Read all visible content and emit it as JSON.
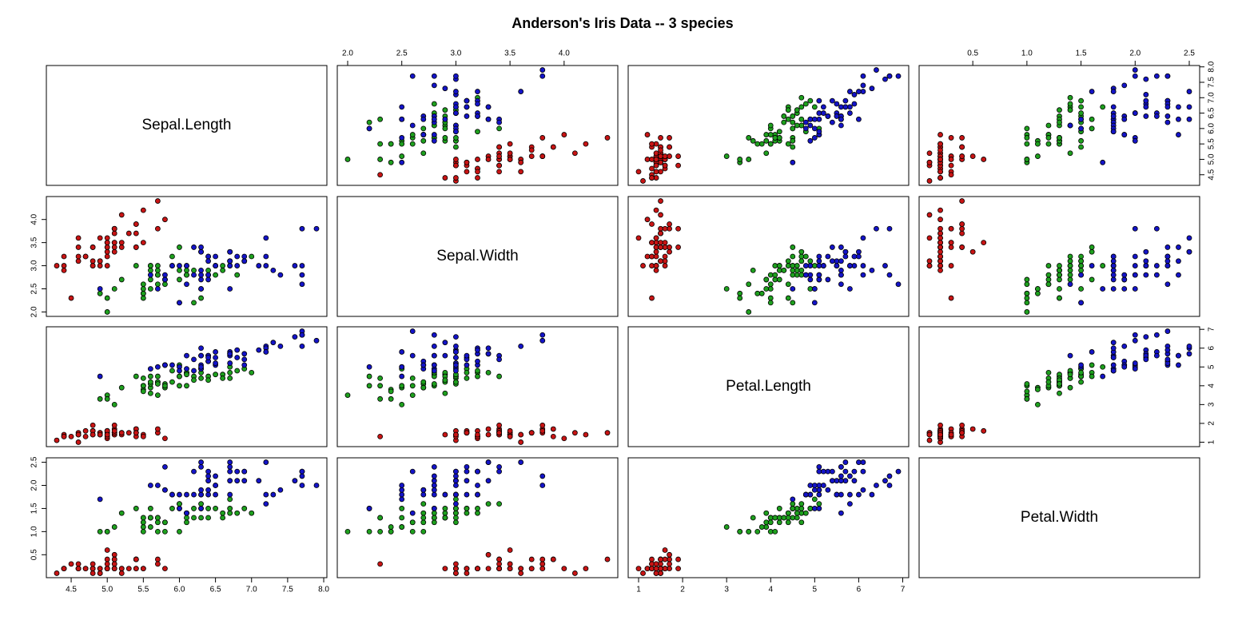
{
  "chart_data": {
    "type": "scatter_matrix",
    "title": "Anderson's Iris Data -- 3 species",
    "variables": [
      {
        "label": "Sepal.Length",
        "lim": [
          4.156,
          8.044
        ],
        "ticks": [
          4.5,
          {
            "value": 5,
            "label": "5.0"
          },
          5.5,
          {
            "value": 6,
            "label": "6.0"
          },
          6.5,
          {
            "value": 7,
            "label": "7.0"
          },
          7.5,
          {
            "value": 8,
            "label": "8.0"
          }
        ]
      },
      {
        "label": "Sepal.Width",
        "lim": [
          1.904,
          4.496
        ],
        "ticks": [
          {
            "value": 2,
            "label": "2.0"
          },
          2.5,
          {
            "value": 3,
            "label": "3.0"
          },
          3.5,
          {
            "value": 4,
            "label": "4.0"
          }
        ]
      },
      {
        "label": "Petal.Length",
        "lim": [
          0.764,
          7.136
        ],
        "ticks": [
          1,
          2,
          3,
          4,
          5,
          6,
          7
        ]
      },
      {
        "label": "Petal.Width",
        "lim": [
          0.004,
          2.596
        ],
        "ticks": [
          0.5,
          {
            "value": 1,
            "label": "1.0"
          },
          1.5,
          {
            "value": 2,
            "label": "2.0"
          },
          2.5
        ]
      }
    ],
    "series": [
      {
        "color": "#c81414",
        "values": [
          [
            5.1,
            4.9,
            4.7,
            4.6,
            5.0,
            5.4,
            4.6,
            5.0,
            4.4,
            4.9,
            5.4,
            4.8,
            4.8,
            4.3,
            5.8,
            5.7,
            5.4,
            5.1,
            5.7,
            5.1,
            5.4,
            5.1,
            4.6,
            5.1,
            4.8,
            5.0,
            5.0,
            5.2,
            5.2,
            4.7,
            4.8,
            5.4,
            5.2,
            5.5,
            4.9,
            5.0,
            5.5,
            4.9,
            4.4,
            5.1,
            5.0,
            4.5,
            4.4,
            5.0,
            5.1,
            4.8,
            5.1,
            4.6,
            5.3,
            5.0
          ],
          [
            3.5,
            3.0,
            3.2,
            3.1,
            3.6,
            3.9,
            3.4,
            3.4,
            2.9,
            3.1,
            3.7,
            3.4,
            3.0,
            3.0,
            4.0,
            4.4,
            3.9,
            3.5,
            3.8,
            3.8,
            3.4,
            3.7,
            3.6,
            3.3,
            3.4,
            3.0,
            3.4,
            3.5,
            3.4,
            3.2,
            3.1,
            3.4,
            4.1,
            4.2,
            3.1,
            3.2,
            3.5,
            3.6,
            3.0,
            3.4,
            3.5,
            2.3,
            3.2,
            3.5,
            3.8,
            3.0,
            3.8,
            3.2,
            3.7,
            3.3
          ],
          [
            1.4,
            1.4,
            1.3,
            1.5,
            1.4,
            1.7,
            1.4,
            1.5,
            1.4,
            1.5,
            1.5,
            1.6,
            1.4,
            1.1,
            1.2,
            1.5,
            1.3,
            1.4,
            1.7,
            1.5,
            1.7,
            1.5,
            1.0,
            1.7,
            1.9,
            1.6,
            1.6,
            1.5,
            1.4,
            1.6,
            1.6,
            1.5,
            1.5,
            1.4,
            1.5,
            1.2,
            1.3,
            1.4,
            1.3,
            1.5,
            1.3,
            1.3,
            1.3,
            1.6,
            1.9,
            1.4,
            1.6,
            1.4,
            1.5,
            1.4
          ],
          [
            0.2,
            0.2,
            0.2,
            0.2,
            0.2,
            0.4,
            0.3,
            0.2,
            0.2,
            0.1,
            0.2,
            0.2,
            0.1,
            0.1,
            0.2,
            0.4,
            0.4,
            0.3,
            0.3,
            0.3,
            0.2,
            0.4,
            0.2,
            0.5,
            0.2,
            0.2,
            0.4,
            0.2,
            0.2,
            0.2,
            0.2,
            0.4,
            0.1,
            0.2,
            0.2,
            0.2,
            0.2,
            0.1,
            0.2,
            0.2,
            0.3,
            0.3,
            0.2,
            0.6,
            0.4,
            0.3,
            0.2,
            0.2,
            0.2,
            0.2
          ]
        ]
      },
      {
        "color": "#1ea01e",
        "values": [
          [
            7.0,
            6.4,
            6.9,
            5.5,
            6.5,
            5.7,
            6.3,
            4.9,
            6.6,
            5.2,
            5.0,
            5.9,
            6.0,
            6.1,
            5.6,
            6.7,
            5.6,
            5.8,
            6.2,
            5.6,
            5.9,
            6.1,
            6.3,
            6.1,
            6.4,
            6.6,
            6.8,
            6.7,
            6.0,
            5.7,
            5.5,
            5.5,
            5.8,
            6.0,
            5.4,
            6.0,
            6.7,
            6.3,
            5.6,
            5.5,
            5.5,
            6.1,
            5.8,
            5.0,
            5.6,
            5.7,
            5.7,
            6.2,
            5.1,
            5.7
          ],
          [
            3.2,
            3.2,
            3.1,
            2.3,
            2.8,
            2.8,
            3.3,
            2.4,
            2.9,
            2.7,
            2.0,
            3.0,
            2.2,
            2.9,
            2.9,
            3.1,
            3.0,
            2.7,
            2.2,
            2.5,
            3.2,
            2.8,
            2.5,
            2.8,
            2.9,
            3.0,
            2.8,
            3.0,
            2.9,
            2.6,
            2.4,
            2.4,
            2.7,
            2.7,
            3.0,
            3.4,
            3.1,
            2.3,
            3.0,
            2.5,
            2.6,
            3.0,
            2.6,
            2.3,
            2.7,
            3.0,
            2.9,
            2.9,
            2.5,
            2.8
          ],
          [
            4.7,
            4.5,
            4.9,
            4.0,
            4.6,
            4.5,
            4.7,
            3.3,
            4.6,
            3.9,
            3.5,
            4.2,
            4.0,
            4.7,
            3.6,
            4.4,
            4.5,
            4.1,
            4.5,
            3.9,
            4.8,
            4.0,
            4.9,
            4.7,
            4.3,
            4.4,
            4.8,
            5.0,
            4.5,
            3.5,
            3.8,
            3.7,
            3.9,
            5.1,
            4.5,
            4.5,
            4.7,
            4.4,
            4.1,
            4.0,
            4.4,
            4.6,
            4.0,
            3.3,
            4.2,
            4.2,
            4.2,
            4.3,
            3.0,
            4.1
          ],
          [
            1.4,
            1.5,
            1.5,
            1.3,
            1.5,
            1.3,
            1.6,
            1.0,
            1.3,
            1.4,
            1.0,
            1.5,
            1.0,
            1.4,
            1.3,
            1.4,
            1.5,
            1.0,
            1.5,
            1.1,
            1.8,
            1.3,
            1.5,
            1.2,
            1.3,
            1.4,
            1.4,
            1.7,
            1.5,
            1.0,
            1.1,
            1.0,
            1.2,
            1.6,
            1.5,
            1.6,
            1.5,
            1.3,
            1.3,
            1.3,
            1.2,
            1.4,
            1.2,
            1.0,
            1.3,
            1.2,
            1.3,
            1.3,
            1.1,
            1.3
          ]
        ]
      },
      {
        "color": "#1414c8",
        "values": [
          [
            6.3,
            5.8,
            7.1,
            6.3,
            6.5,
            7.6,
            4.9,
            7.3,
            6.7,
            7.2,
            6.5,
            6.4,
            6.8,
            5.7,
            5.8,
            6.4,
            6.5,
            7.7,
            7.7,
            6.0,
            6.9,
            5.6,
            7.7,
            6.3,
            6.7,
            7.2,
            6.2,
            6.1,
            6.4,
            7.2,
            7.4,
            7.9,
            6.4,
            6.3,
            6.1,
            7.7,
            6.3,
            6.4,
            6.0,
            6.9,
            6.7,
            6.9,
            5.8,
            6.8,
            6.7,
            6.7,
            6.3,
            6.5,
            6.2,
            5.9
          ],
          [
            3.3,
            2.7,
            3.0,
            2.9,
            3.0,
            3.0,
            2.5,
            2.9,
            2.5,
            3.6,
            3.2,
            2.7,
            3.0,
            2.5,
            2.8,
            3.2,
            3.0,
            3.8,
            2.6,
            2.2,
            3.2,
            2.8,
            2.8,
            2.7,
            3.3,
            3.2,
            2.8,
            3.0,
            2.8,
            3.0,
            2.8,
            3.8,
            2.8,
            2.8,
            2.6,
            3.0,
            3.4,
            3.1,
            3.0,
            3.1,
            3.1,
            3.1,
            2.7,
            3.2,
            3.3,
            3.0,
            2.5,
            3.0,
            3.4,
            3.0
          ],
          [
            6.0,
            5.1,
            5.9,
            5.6,
            5.8,
            6.6,
            4.5,
            6.3,
            5.8,
            6.1,
            5.1,
            5.3,
            5.5,
            5.0,
            5.1,
            5.3,
            5.5,
            6.7,
            6.9,
            5.0,
            5.7,
            4.9,
            6.7,
            4.9,
            5.7,
            6.0,
            4.8,
            4.9,
            5.6,
            5.8,
            6.1,
            6.4,
            5.6,
            5.1,
            5.6,
            6.1,
            5.6,
            5.5,
            4.8,
            5.4,
            5.6,
            5.1,
            5.1,
            5.9,
            5.7,
            5.2,
            5.0,
            5.2,
            5.4,
            5.1
          ],
          [
            2.5,
            1.9,
            2.1,
            1.8,
            2.2,
            2.1,
            1.7,
            1.8,
            1.8,
            2.5,
            2.0,
            1.9,
            2.1,
            2.0,
            2.4,
            2.3,
            1.8,
            2.2,
            2.3,
            1.5,
            2.3,
            2.0,
            2.0,
            1.8,
            2.1,
            1.8,
            1.8,
            1.8,
            2.1,
            1.6,
            1.9,
            2.0,
            2.2,
            1.5,
            1.4,
            2.3,
            2.4,
            1.8,
            1.8,
            2.1,
            2.4,
            2.3,
            1.9,
            2.3,
            2.5,
            2.3,
            1.9,
            2.0,
            2.3,
            1.8
          ]
        ]
      }
    ]
  }
}
